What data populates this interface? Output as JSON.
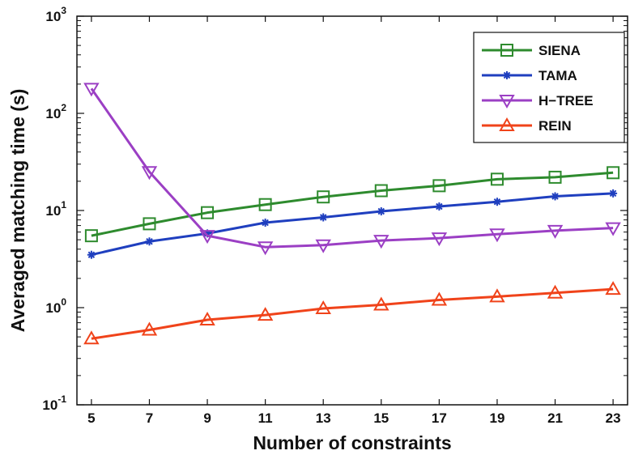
{
  "chart_data": {
    "type": "line",
    "xlabel": "Number of constraints",
    "ylabel": "Averaged matching time (s)",
    "yscale": "log",
    "xlim": [
      4.5,
      23.5
    ],
    "ylim": [
      0.1,
      1000
    ],
    "x": [
      5,
      7,
      9,
      11,
      13,
      15,
      17,
      19,
      21,
      23
    ],
    "x_ticks": [
      "5",
      "7",
      "9",
      "11",
      "13",
      "15",
      "17",
      "19",
      "21",
      "23"
    ],
    "y_ticks": [
      {
        "value": 0.1,
        "base": "10",
        "exp": "-1"
      },
      {
        "value": 1,
        "base": "10",
        "exp": "0"
      },
      {
        "value": 10,
        "base": "10",
        "exp": "1"
      },
      {
        "value": 100,
        "base": "10",
        "exp": "2"
      },
      {
        "value": 1000,
        "base": "10",
        "exp": "3"
      }
    ],
    "grid": false,
    "legend_position": "top-right",
    "series": [
      {
        "name": "SIENA",
        "color": "#2e8b2e",
        "marker": "square",
        "values": [
          5.5,
          7.3,
          9.5,
          11.5,
          13.8,
          16,
          18,
          21,
          22,
          24.5
        ]
      },
      {
        "name": "TAMA",
        "color": "#1f3fbf",
        "marker": "star",
        "values": [
          3.5,
          4.8,
          5.8,
          7.5,
          8.5,
          9.8,
          11,
          12.3,
          14,
          15
        ]
      },
      {
        "name": "H−TREE",
        "color": "#9b3fc4",
        "marker": "triangle-down",
        "values": [
          180,
          25,
          5.5,
          4.2,
          4.4,
          4.9,
          5.2,
          5.7,
          6.2,
          6.6
        ]
      },
      {
        "name": "REIN",
        "color": "#f0431a",
        "marker": "triangle-up",
        "values": [
          0.48,
          0.59,
          0.75,
          0.84,
          0.98,
          1.07,
          1.2,
          1.3,
          1.42,
          1.55
        ]
      }
    ]
  }
}
